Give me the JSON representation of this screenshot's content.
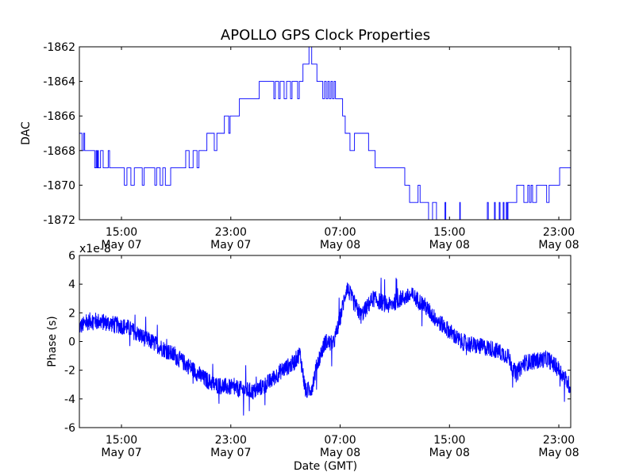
{
  "title": "APOLLO GPS Clock Properties",
  "xlabel": "Date (GMT)",
  "chart_data": [
    {
      "type": "line",
      "name": "DAC",
      "ylabel": "DAC",
      "line_style": "steps-post",
      "color": "#0000ff",
      "x_units": "hours since May 07 00:00 GMT",
      "xlim": [
        11.92,
        47.87
      ],
      "ylim": [
        -1872,
        -1862
      ],
      "yticks": [
        -1872,
        -1870,
        -1868,
        -1866,
        -1864,
        -1862
      ],
      "ytick_labels": [
        "-1872",
        "-1870",
        "-1868",
        "-1866",
        "-1864",
        "-1862"
      ],
      "xticks": [
        15,
        23,
        31,
        39,
        47
      ],
      "xtick_labels": [
        [
          "15:00",
          "May 07"
        ],
        [
          "23:00",
          "May 07"
        ],
        [
          "07:00",
          "May 08"
        ],
        [
          "15:00",
          "May 08"
        ],
        [
          "23:00",
          "May 08"
        ]
      ],
      "points": [
        [
          11.92,
          -1867
        ],
        [
          12.11,
          -1868
        ],
        [
          12.23,
          -1867
        ],
        [
          12.31,
          -1868
        ],
        [
          13.04,
          -1869
        ],
        [
          13.14,
          -1868
        ],
        [
          13.2,
          -1869
        ],
        [
          13.26,
          -1868
        ],
        [
          13.31,
          -1869
        ],
        [
          13.47,
          -1868
        ],
        [
          13.66,
          -1869
        ],
        [
          14.03,
          -1868
        ],
        [
          14.13,
          -1869
        ],
        [
          15.21,
          -1870
        ],
        [
          15.4,
          -1869
        ],
        [
          15.69,
          -1870
        ],
        [
          15.94,
          -1869
        ],
        [
          16.52,
          -1870
        ],
        [
          16.66,
          -1869
        ],
        [
          17.44,
          -1870
        ],
        [
          17.57,
          -1869
        ],
        [
          17.83,
          -1870
        ],
        [
          18.02,
          -1869
        ],
        [
          18.21,
          -1870
        ],
        [
          18.6,
          -1869
        ],
        [
          19.7,
          -1868
        ],
        [
          19.95,
          -1869
        ],
        [
          20.24,
          -1868
        ],
        [
          20.53,
          -1869
        ],
        [
          20.67,
          -1868
        ],
        [
          21.25,
          -1867
        ],
        [
          21.79,
          -1868
        ],
        [
          21.98,
          -1867
        ],
        [
          22.53,
          -1866
        ],
        [
          22.85,
          -1867
        ],
        [
          22.95,
          -1866
        ],
        [
          23.63,
          -1865
        ],
        [
          25.08,
          -1864
        ],
        [
          26.15,
          -1865
        ],
        [
          26.26,
          -1864
        ],
        [
          26.5,
          -1865
        ],
        [
          26.61,
          -1864
        ],
        [
          26.9,
          -1865
        ],
        [
          27.08,
          -1864
        ],
        [
          27.37,
          -1865
        ],
        [
          27.48,
          -1864
        ],
        [
          27.89,
          -1865
        ],
        [
          28.01,
          -1864
        ],
        [
          28.28,
          -1863
        ],
        [
          28.72,
          -1862
        ],
        [
          28.92,
          -1863
        ],
        [
          29.3,
          -1864
        ],
        [
          29.73,
          -1865
        ],
        [
          29.86,
          -1864
        ],
        [
          29.98,
          -1865
        ],
        [
          30.1,
          -1864
        ],
        [
          30.21,
          -1865
        ],
        [
          30.33,
          -1864
        ],
        [
          30.44,
          -1865
        ],
        [
          30.56,
          -1864
        ],
        [
          30.66,
          -1865
        ],
        [
          31.18,
          -1866
        ],
        [
          31.37,
          -1867
        ],
        [
          31.72,
          -1868
        ],
        [
          32.05,
          -1867
        ],
        [
          33.08,
          -1868
        ],
        [
          33.56,
          -1869
        ],
        [
          35.73,
          -1870
        ],
        [
          36.08,
          -1871
        ],
        [
          36.7,
          -1870
        ],
        [
          36.85,
          -1871
        ],
        [
          37.47,
          -1872
        ],
        [
          37.76,
          -1871
        ],
        [
          38.05,
          -1872
        ],
        [
          38.67,
          -1871
        ],
        [
          38.73,
          -1872
        ],
        [
          39.75,
          -1871
        ],
        [
          39.79,
          -1872
        ],
        [
          41.77,
          -1871
        ],
        [
          41.84,
          -1872
        ],
        [
          42.29,
          -1871
        ],
        [
          42.35,
          -1872
        ],
        [
          42.64,
          -1871
        ],
        [
          42.7,
          -1872
        ],
        [
          42.93,
          -1871
        ],
        [
          42.99,
          -1872
        ],
        [
          43.16,
          -1871
        ],
        [
          43.22,
          -1872
        ],
        [
          43.28,
          -1871
        ],
        [
          43.92,
          -1870
        ],
        [
          44.44,
          -1871
        ],
        [
          44.73,
          -1870
        ],
        [
          44.85,
          -1871
        ],
        [
          44.97,
          -1870
        ],
        [
          45.08,
          -1871
        ],
        [
          45.37,
          -1870
        ],
        [
          46.11,
          -1871
        ],
        [
          46.29,
          -1870
        ],
        [
          47.06,
          -1869
        ],
        [
          47.87,
          -1869
        ]
      ]
    },
    {
      "type": "line",
      "name": "Phase",
      "ylabel": "Phase (s)",
      "offset_label": "x1e-8",
      "color": "#0000ff",
      "x_units": "hours since May 07 00:00 GMT",
      "y_units": "1e-8 s",
      "xlim": [
        11.92,
        47.87
      ],
      "ylim": [
        -6,
        6
      ],
      "yticks": [
        -6,
        -4,
        -2,
        0,
        2,
        4,
        6
      ],
      "ytick_labels": [
        "-6",
        "-4",
        "-2",
        "0",
        "2",
        "4",
        "6"
      ],
      "xticks": [
        15,
        23,
        31,
        39,
        47
      ],
      "xtick_labels": [
        [
          "15:00",
          "May 07"
        ],
        [
          "23:00",
          "May 07"
        ],
        [
          "07:00",
          "May 08"
        ],
        [
          "15:00",
          "May 08"
        ],
        [
          "23:00",
          "May 08"
        ]
      ],
      "trend": [
        [
          11.92,
          1.0
        ],
        [
          12.79,
          1.5
        ],
        [
          13.95,
          1.3
        ],
        [
          15.4,
          1.0
        ],
        [
          16.57,
          0.3
        ],
        [
          17.73,
          -0.3
        ],
        [
          18.89,
          -1.0
        ],
        [
          20.05,
          -1.8
        ],
        [
          20.92,
          -2.5
        ],
        [
          21.79,
          -3.0
        ],
        [
          23.53,
          -3.3
        ],
        [
          24.7,
          -3.5
        ],
        [
          25.86,
          -2.8
        ],
        [
          26.73,
          -2.0
        ],
        [
          27.6,
          -1.5
        ],
        [
          28.06,
          -0.8
        ],
        [
          28.47,
          -3.5
        ],
        [
          28.93,
          -3.2
        ],
        [
          29.34,
          -1.5
        ],
        [
          29.92,
          0.0
        ],
        [
          30.5,
          -0.2
        ],
        [
          30.97,
          1.5
        ],
        [
          31.49,
          3.8
        ],
        [
          31.95,
          2.8
        ],
        [
          32.53,
          1.8
        ],
        [
          33.41,
          3.0
        ],
        [
          34.57,
          2.5
        ],
        [
          35.44,
          3.0
        ],
        [
          36.31,
          3.2
        ],
        [
          37.18,
          2.5
        ],
        [
          38.05,
          1.5
        ],
        [
          38.92,
          0.8
        ],
        [
          39.79,
          0.0
        ],
        [
          40.95,
          -0.3
        ],
        [
          42.12,
          -0.5
        ],
        [
          43.28,
          -1.0
        ],
        [
          43.86,
          -2.3
        ],
        [
          44.44,
          -1.5
        ],
        [
          46.18,
          -1.2
        ],
        [
          47.06,
          -2.0
        ],
        [
          47.87,
          -3.2
        ]
      ],
      "noise_amplitude": 0.6
    }
  ]
}
